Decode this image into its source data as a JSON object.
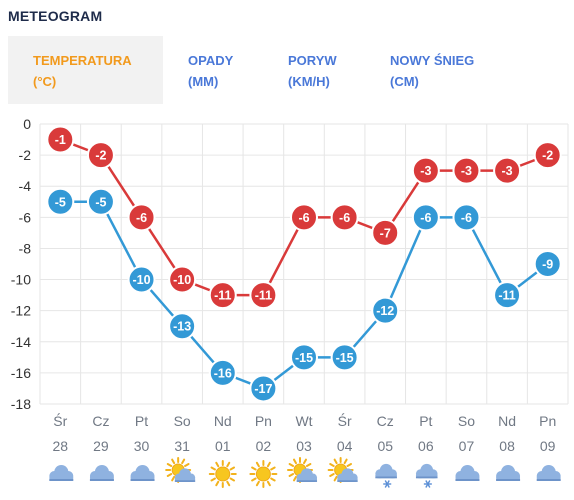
{
  "header": {
    "title": "METEOGRAM"
  },
  "tabs": [
    {
      "line1": "TEMPERATURA",
      "line2": "(°C)",
      "active": true
    },
    {
      "line1": "OPADY",
      "line2": "(MM)",
      "active": false
    },
    {
      "line1": "PORYW",
      "line2": "(KM/H)",
      "active": false
    },
    {
      "line1": "NOWY ŚNIEG",
      "line2": "(CM)",
      "active": false
    }
  ],
  "chart_data": {
    "type": "line",
    "ylim": [
      -18,
      0
    ],
    "yticks": [
      0,
      -2,
      -4,
      -6,
      -8,
      -10,
      -12,
      -14,
      -16,
      -18
    ],
    "grid": true,
    "days": [
      "Śr",
      "Cz",
      "Pt",
      "So",
      "Nd",
      "Pn",
      "Wt",
      "Śr",
      "Cz",
      "Pt",
      "So",
      "Nd",
      "Pn"
    ],
    "dates": [
      "28",
      "29",
      "30",
      "31",
      "01",
      "02",
      "03",
      "04",
      "05",
      "06",
      "07",
      "08",
      "09"
    ],
    "series": [
      {
        "role": "max",
        "color": "#d93a3a",
        "values": [
          -1,
          -2,
          -6,
          -10,
          -11,
          -11,
          -6,
          -6,
          -7,
          -3,
          -3,
          -3,
          -2
        ]
      },
      {
        "role": "min",
        "color": "#3399d6",
        "values": [
          -5,
          -5,
          -10,
          -13,
          -16,
          -17,
          -15,
          -15,
          -12,
          -6,
          -6,
          -11,
          -9
        ]
      }
    ],
    "icons": [
      "cloud-icon",
      "cloud-icon",
      "cloud-icon",
      "sun-cloud-icon",
      "sun-icon",
      "sun-icon",
      "sun-cloud-icon",
      "sun-cloud-icon",
      "snow-cloud-icon",
      "snow-cloud-icon",
      "cloud-icon",
      "cloud-icon",
      "cloud-icon"
    ]
  }
}
